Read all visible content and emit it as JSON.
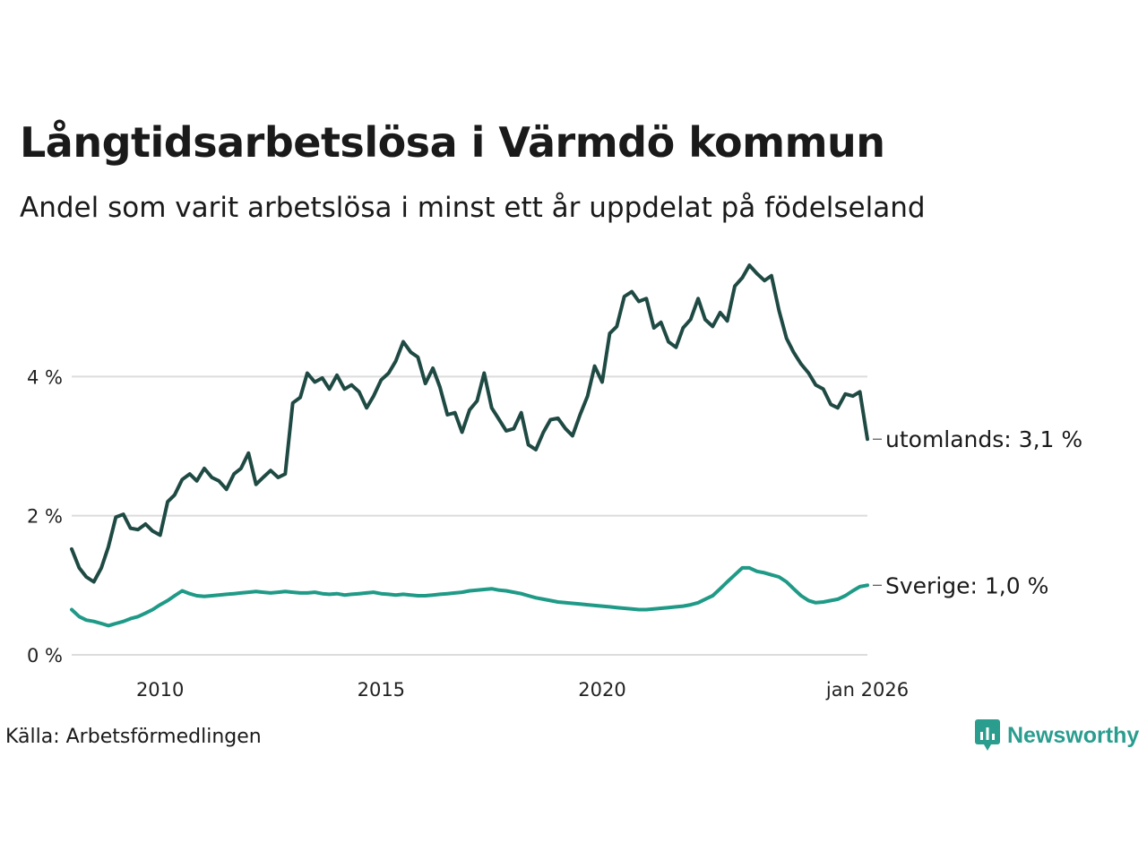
{
  "title": "Långtidsarbetslösa i Värmdö kommun",
  "subtitle": "Andel som varit arbetslösa i minst ett år uppdelat på födelseland",
  "source": "Källa: Arbetsförmedlingen",
  "brand": {
    "name": "Newsworthy",
    "icon": "newsworthy-logo-icon",
    "color": "#2a9d8f"
  },
  "chart_data": {
    "type": "line",
    "x_range": [
      2008.0,
      2026.0
    ],
    "ylim": [
      0,
      6
    ],
    "grid": true,
    "x_ticks": [
      {
        "value": 2010.0,
        "label": "2010"
      },
      {
        "value": 2015.0,
        "label": "2015"
      },
      {
        "value": 2020.0,
        "label": "2020"
      },
      {
        "value": 2026.0,
        "label": "jan 2026"
      }
    ],
    "y_ticks": [
      {
        "value": 0,
        "label": "0 %"
      },
      {
        "value": 2,
        "label": "2 %"
      },
      {
        "value": 4,
        "label": "4 %"
      }
    ],
    "series": [
      {
        "name": "utomlands",
        "label": "utomlands: 3,1 %",
        "color": "#1f4a44",
        "points": [
          [
            2008.0,
            1.52
          ],
          [
            2008.17,
            1.25
          ],
          [
            2008.33,
            1.12
          ],
          [
            2008.5,
            1.05
          ],
          [
            2008.67,
            1.25
          ],
          [
            2008.83,
            1.55
          ],
          [
            2009.0,
            1.98
          ],
          [
            2009.17,
            2.02
          ],
          [
            2009.33,
            1.82
          ],
          [
            2009.5,
            1.8
          ],
          [
            2009.67,
            1.88
          ],
          [
            2009.83,
            1.78
          ],
          [
            2010.0,
            1.72
          ],
          [
            2010.17,
            2.2
          ],
          [
            2010.33,
            2.3
          ],
          [
            2010.5,
            2.52
          ],
          [
            2010.67,
            2.6
          ],
          [
            2010.83,
            2.5
          ],
          [
            2011.0,
            2.68
          ],
          [
            2011.17,
            2.55
          ],
          [
            2011.33,
            2.5
          ],
          [
            2011.5,
            2.38
          ],
          [
            2011.67,
            2.6
          ],
          [
            2011.83,
            2.68
          ],
          [
            2012.0,
            2.9
          ],
          [
            2012.17,
            2.45
          ],
          [
            2012.33,
            2.55
          ],
          [
            2012.5,
            2.65
          ],
          [
            2012.67,
            2.55
          ],
          [
            2012.83,
            2.6
          ],
          [
            2013.0,
            3.62
          ],
          [
            2013.17,
            3.7
          ],
          [
            2013.33,
            4.05
          ],
          [
            2013.5,
            3.92
          ],
          [
            2013.67,
            3.98
          ],
          [
            2013.83,
            3.82
          ],
          [
            2014.0,
            4.02
          ],
          [
            2014.17,
            3.82
          ],
          [
            2014.33,
            3.88
          ],
          [
            2014.5,
            3.78
          ],
          [
            2014.67,
            3.55
          ],
          [
            2014.83,
            3.72
          ],
          [
            2015.0,
            3.95
          ],
          [
            2015.17,
            4.05
          ],
          [
            2015.33,
            4.22
          ],
          [
            2015.5,
            4.5
          ],
          [
            2015.67,
            4.35
          ],
          [
            2015.83,
            4.28
          ],
          [
            2016.0,
            3.9
          ],
          [
            2016.17,
            4.12
          ],
          [
            2016.33,
            3.85
          ],
          [
            2016.5,
            3.45
          ],
          [
            2016.67,
            3.48
          ],
          [
            2016.83,
            3.2
          ],
          [
            2017.0,
            3.52
          ],
          [
            2017.17,
            3.65
          ],
          [
            2017.33,
            4.05
          ],
          [
            2017.5,
            3.55
          ],
          [
            2017.67,
            3.38
          ],
          [
            2017.83,
            3.22
          ],
          [
            2018.0,
            3.25
          ],
          [
            2018.17,
            3.48
          ],
          [
            2018.33,
            3.02
          ],
          [
            2018.5,
            2.95
          ],
          [
            2018.67,
            3.2
          ],
          [
            2018.83,
            3.38
          ],
          [
            2019.0,
            3.4
          ],
          [
            2019.17,
            3.25
          ],
          [
            2019.33,
            3.15
          ],
          [
            2019.5,
            3.45
          ],
          [
            2019.67,
            3.72
          ],
          [
            2019.83,
            4.15
          ],
          [
            2020.0,
            3.92
          ],
          [
            2020.17,
            4.62
          ],
          [
            2020.33,
            4.72
          ],
          [
            2020.5,
            5.15
          ],
          [
            2020.67,
            5.22
          ],
          [
            2020.83,
            5.08
          ],
          [
            2021.0,
            5.12
          ],
          [
            2021.17,
            4.7
          ],
          [
            2021.33,
            4.78
          ],
          [
            2021.5,
            4.5
          ],
          [
            2021.67,
            4.42
          ],
          [
            2021.83,
            4.7
          ],
          [
            2022.0,
            4.82
          ],
          [
            2022.17,
            5.12
          ],
          [
            2022.33,
            4.82
          ],
          [
            2022.5,
            4.72
          ],
          [
            2022.67,
            4.92
          ],
          [
            2022.83,
            4.8
          ],
          [
            2023.0,
            5.3
          ],
          [
            2023.17,
            5.42
          ],
          [
            2023.33,
            5.6
          ],
          [
            2023.5,
            5.48
          ],
          [
            2023.67,
            5.38
          ],
          [
            2023.83,
            5.45
          ],
          [
            2024.0,
            4.95
          ],
          [
            2024.17,
            4.55
          ],
          [
            2024.33,
            4.35
          ],
          [
            2024.5,
            4.18
          ],
          [
            2024.67,
            4.05
          ],
          [
            2024.83,
            3.88
          ],
          [
            2025.0,
            3.82
          ],
          [
            2025.17,
            3.6
          ],
          [
            2025.33,
            3.55
          ],
          [
            2025.5,
            3.75
          ],
          [
            2025.67,
            3.72
          ],
          [
            2025.83,
            3.78
          ],
          [
            2026.0,
            3.1
          ]
        ]
      },
      {
        "name": "Sverige",
        "label": "Sverige: 1,0 %",
        "color": "#1f9a87",
        "points": [
          [
            2008.0,
            0.65
          ],
          [
            2008.17,
            0.55
          ],
          [
            2008.33,
            0.5
          ],
          [
            2008.5,
            0.48
          ],
          [
            2008.67,
            0.45
          ],
          [
            2008.83,
            0.42
          ],
          [
            2009.0,
            0.45
          ],
          [
            2009.17,
            0.48
          ],
          [
            2009.33,
            0.52
          ],
          [
            2009.5,
            0.55
          ],
          [
            2009.67,
            0.6
          ],
          [
            2009.83,
            0.65
          ],
          [
            2010.0,
            0.72
          ],
          [
            2010.17,
            0.78
          ],
          [
            2010.33,
            0.85
          ],
          [
            2010.5,
            0.92
          ],
          [
            2010.67,
            0.88
          ],
          [
            2010.83,
            0.85
          ],
          [
            2011.0,
            0.84
          ],
          [
            2011.17,
            0.85
          ],
          [
            2011.33,
            0.86
          ],
          [
            2011.5,
            0.87
          ],
          [
            2011.67,
            0.88
          ],
          [
            2011.83,
            0.89
          ],
          [
            2012.0,
            0.9
          ],
          [
            2012.17,
            0.91
          ],
          [
            2012.33,
            0.9
          ],
          [
            2012.5,
            0.89
          ],
          [
            2012.67,
            0.9
          ],
          [
            2012.83,
            0.91
          ],
          [
            2013.0,
            0.9
          ],
          [
            2013.17,
            0.89
          ],
          [
            2013.33,
            0.89
          ],
          [
            2013.5,
            0.9
          ],
          [
            2013.67,
            0.88
          ],
          [
            2013.83,
            0.87
          ],
          [
            2014.0,
            0.88
          ],
          [
            2014.17,
            0.86
          ],
          [
            2014.33,
            0.87
          ],
          [
            2014.5,
            0.88
          ],
          [
            2014.67,
            0.89
          ],
          [
            2014.83,
            0.9
          ],
          [
            2015.0,
            0.88
          ],
          [
            2015.17,
            0.87
          ],
          [
            2015.33,
            0.86
          ],
          [
            2015.5,
            0.87
          ],
          [
            2015.67,
            0.86
          ],
          [
            2015.83,
            0.85
          ],
          [
            2016.0,
            0.85
          ],
          [
            2016.17,
            0.86
          ],
          [
            2016.33,
            0.87
          ],
          [
            2016.5,
            0.88
          ],
          [
            2016.67,
            0.89
          ],
          [
            2016.83,
            0.9
          ],
          [
            2017.0,
            0.92
          ],
          [
            2017.17,
            0.93
          ],
          [
            2017.33,
            0.94
          ],
          [
            2017.5,
            0.95
          ],
          [
            2017.67,
            0.93
          ],
          [
            2017.83,
            0.92
          ],
          [
            2018.0,
            0.9
          ],
          [
            2018.17,
            0.88
          ],
          [
            2018.33,
            0.85
          ],
          [
            2018.5,
            0.82
          ],
          [
            2018.67,
            0.8
          ],
          [
            2018.83,
            0.78
          ],
          [
            2019.0,
            0.76
          ],
          [
            2019.17,
            0.75
          ],
          [
            2019.33,
            0.74
          ],
          [
            2019.5,
            0.73
          ],
          [
            2019.67,
            0.72
          ],
          [
            2019.83,
            0.71
          ],
          [
            2020.0,
            0.7
          ],
          [
            2020.17,
            0.69
          ],
          [
            2020.33,
            0.68
          ],
          [
            2020.5,
            0.67
          ],
          [
            2020.67,
            0.66
          ],
          [
            2020.83,
            0.65
          ],
          [
            2021.0,
            0.65
          ],
          [
            2021.17,
            0.66
          ],
          [
            2021.33,
            0.67
          ],
          [
            2021.5,
            0.68
          ],
          [
            2021.67,
            0.69
          ],
          [
            2021.83,
            0.7
          ],
          [
            2022.0,
            0.72
          ],
          [
            2022.17,
            0.75
          ],
          [
            2022.33,
            0.8
          ],
          [
            2022.5,
            0.85
          ],
          [
            2022.67,
            0.95
          ],
          [
            2022.83,
            1.05
          ],
          [
            2023.0,
            1.15
          ],
          [
            2023.17,
            1.25
          ],
          [
            2023.33,
            1.25
          ],
          [
            2023.5,
            1.2
          ],
          [
            2023.67,
            1.18
          ],
          [
            2023.83,
            1.15
          ],
          [
            2024.0,
            1.12
          ],
          [
            2024.17,
            1.05
          ],
          [
            2024.33,
            0.95
          ],
          [
            2024.5,
            0.85
          ],
          [
            2024.67,
            0.78
          ],
          [
            2024.83,
            0.75
          ],
          [
            2025.0,
            0.76
          ],
          [
            2025.17,
            0.78
          ],
          [
            2025.33,
            0.8
          ],
          [
            2025.5,
            0.85
          ],
          [
            2025.67,
            0.92
          ],
          [
            2025.83,
            0.98
          ],
          [
            2026.0,
            1.0
          ]
        ]
      }
    ]
  }
}
